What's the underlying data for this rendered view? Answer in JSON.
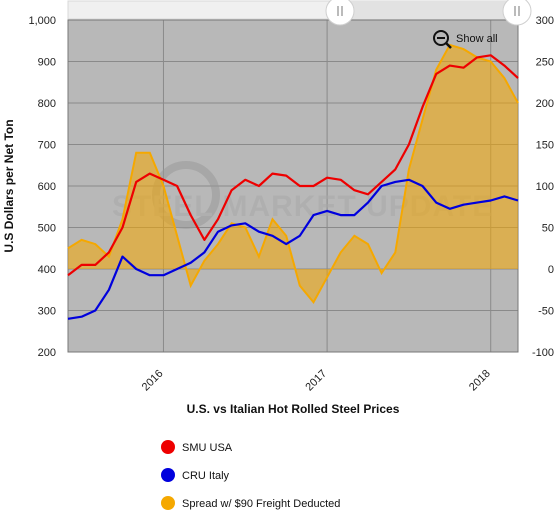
{
  "chart_data": {
    "type": "line",
    "title": "U.S. vs Italian Hot Rolled Steel Prices",
    "ylabel": "U.S Dollars per Net Ton",
    "ylim": [
      200,
      1000
    ],
    "yticks": [
      "1,000",
      "900",
      "800",
      "700",
      "600",
      "500",
      "400",
      "300",
      "200"
    ],
    "ylim_right": [
      -100,
      300
    ],
    "yticks_right": [
      "300",
      "250",
      "200",
      "150",
      "100",
      "50",
      "0",
      "-50",
      "-100"
    ],
    "x_range": [
      "2015-06",
      "2018-03"
    ],
    "xticks": [
      "2016",
      "2017",
      "2018"
    ],
    "grid": true,
    "legend_position": "bottom",
    "series": [
      {
        "name": "SMU USA",
        "color": "#ee0000",
        "axis": "left",
        "x": [
          "2015-06",
          "2015-07",
          "2015-08",
          "2015-09",
          "2015-10",
          "2015-11",
          "2015-12",
          "2016-01",
          "2016-02",
          "2016-03",
          "2016-04",
          "2016-05",
          "2016-06",
          "2016-07",
          "2016-08",
          "2016-09",
          "2016-10",
          "2016-11",
          "2016-12",
          "2017-01",
          "2017-02",
          "2017-03",
          "2017-04",
          "2017-05",
          "2017-06",
          "2017-07",
          "2017-08",
          "2017-09",
          "2017-10",
          "2017-11",
          "2017-12",
          "2018-01",
          "2018-02",
          "2018-03"
        ],
        "values": [
          385,
          410,
          410,
          440,
          500,
          610,
          630,
          615,
          600,
          530,
          470,
          520,
          590,
          615,
          600,
          630,
          625,
          600,
          600,
          620,
          615,
          590,
          580,
          610,
          640,
          700,
          790,
          870,
          890,
          885,
          910,
          915,
          890,
          860
        ]
      },
      {
        "name": "CRU Italy",
        "color": "#0000dd",
        "axis": "left",
        "x": [
          "2015-06",
          "2015-07",
          "2015-08",
          "2015-09",
          "2015-10",
          "2015-11",
          "2015-12",
          "2016-01",
          "2016-02",
          "2016-03",
          "2016-04",
          "2016-05",
          "2016-06",
          "2016-07",
          "2016-08",
          "2016-09",
          "2016-10",
          "2016-11",
          "2016-12",
          "2017-01",
          "2017-02",
          "2017-03",
          "2017-04",
          "2017-05",
          "2017-06",
          "2017-07",
          "2017-08",
          "2017-09",
          "2017-10",
          "2017-11",
          "2017-12",
          "2018-01",
          "2018-02",
          "2018-03"
        ],
        "values": [
          280,
          285,
          300,
          350,
          430,
          400,
          385,
          385,
          400,
          415,
          440,
          490,
          505,
          510,
          490,
          480,
          460,
          480,
          530,
          540,
          530,
          530,
          560,
          600,
          610,
          615,
          600,
          560,
          545,
          555,
          560,
          565,
          575,
          565
        ]
      },
      {
        "name": "Spread w/ $90 Freight Deducted",
        "color": "#f5a800",
        "axis": "right",
        "type": "area",
        "x": [
          "2015-06",
          "2015-07",
          "2015-08",
          "2015-09",
          "2015-10",
          "2015-11",
          "2015-12",
          "2016-01",
          "2016-02",
          "2016-03",
          "2016-04",
          "2016-05",
          "2016-06",
          "2016-07",
          "2016-08",
          "2016-09",
          "2016-10",
          "2016-11",
          "2016-12",
          "2017-01",
          "2017-02",
          "2017-03",
          "2017-04",
          "2017-05",
          "2017-06",
          "2017-07",
          "2017-08",
          "2017-09",
          "2017-10",
          "2017-11",
          "2017-12",
          "2018-01",
          "2018-02",
          "2018-03"
        ],
        "values": [
          25,
          35,
          30,
          15,
          60,
          140,
          140,
          100,
          40,
          -20,
          10,
          30,
          55,
          50,
          15,
          60,
          40,
          -20,
          -40,
          -10,
          20,
          40,
          30,
          -5,
          20,
          120,
          180,
          240,
          270,
          265,
          255,
          250,
          230,
          200
        ]
      }
    ]
  },
  "toolbar": {
    "show_all_label": "Show all"
  },
  "watermark": {
    "text": "STEEL MARKET UPDATE"
  }
}
